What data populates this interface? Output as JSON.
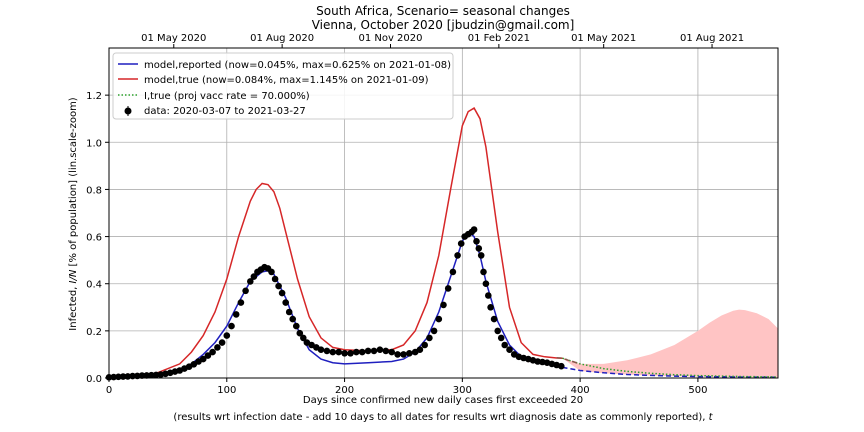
{
  "chart_data": {
    "type": "line",
    "title": [
      "South Africa, Scenario= seasonal changes",
      "Vienna, October 2020 [jbudzin@gmail.com]"
    ],
    "xlabel": "Days since confirmed new daily cases first exceeded 20",
    "xlabel_note_before": "(results wrt infection date - add 10 days to all dates for results wrt diagnosis date as commonly reported), ",
    "xlabel_note_var": "t",
    "ylabel_before": "Infected, ",
    "ylabel_var": "I/N",
    "ylabel_after": " [% of population] (lin.scale-zoom)",
    "xlim": [
      0,
      568
    ],
    "ylim": [
      0,
      1.4
    ],
    "x_ticks": [
      0,
      100,
      200,
      300,
      400,
      500
    ],
    "y_ticks": [
      0.0,
      0.2,
      0.4,
      0.6,
      0.8,
      1.0,
      1.2
    ],
    "top_axis_ticks": [
      {
        "x": 55,
        "label": "01 May 2020"
      },
      {
        "x": 147,
        "label": "01 Aug 2020"
      },
      {
        "x": 239,
        "label": "01 Nov 2020"
      },
      {
        "x": 331,
        "label": "01 Feb 2021"
      },
      {
        "x": 420,
        "label": "01 May 2021"
      },
      {
        "x": 512,
        "label": "01 Aug 2021"
      }
    ],
    "grid": true,
    "legend_position": "upper-left",
    "legend": [
      {
        "label": "model,reported (now=0.045%, max=0.625% on 2021-01-08)",
        "color": "#1f1fbf",
        "style": "solid"
      },
      {
        "label": "model,true (now=0.084%, max=1.145% on 2021-01-09)",
        "color": "#d62728",
        "style": "solid"
      },
      {
        "label": "I,true (proj vacc rate = 70.000%)",
        "color": "#2ca02c",
        "style": "dotted"
      },
      {
        "label": "data: 2020-03-07 to 2021-03-27",
        "color": "#000000",
        "style": "marker"
      }
    ],
    "series": [
      {
        "name": "model,reported",
        "color": "#1f1fbf",
        "x": [
          0,
          20,
          40,
          60,
          70,
          80,
          90,
          100,
          110,
          120,
          130,
          135,
          140,
          150,
          160,
          170,
          180,
          190,
          200,
          220,
          240,
          250,
          260,
          270,
          280,
          290,
          300,
          305,
          310,
          315,
          320,
          330,
          340,
          350,
          360,
          370,
          380,
          385
        ],
        "y": [
          0.0,
          0.005,
          0.01,
          0.03,
          0.06,
          0.1,
          0.15,
          0.22,
          0.32,
          0.41,
          0.45,
          0.455,
          0.44,
          0.34,
          0.21,
          0.12,
          0.08,
          0.065,
          0.06,
          0.065,
          0.07,
          0.08,
          0.11,
          0.17,
          0.28,
          0.43,
          0.58,
          0.62,
          0.6,
          0.52,
          0.41,
          0.24,
          0.14,
          0.09,
          0.07,
          0.06,
          0.05,
          0.045
        ]
      },
      {
        "name": "model,reported (projection)",
        "color": "#1f1fbf",
        "dashed": true,
        "x": [
          385,
          400,
          420,
          440,
          460,
          480,
          500,
          520,
          540,
          560,
          568
        ],
        "y": [
          0.045,
          0.032,
          0.022,
          0.015,
          0.011,
          0.008,
          0.006,
          0.005,
          0.004,
          0.003,
          0.003
        ]
      },
      {
        "name": "model,true",
        "color": "#d62728",
        "x": [
          0,
          20,
          40,
          60,
          70,
          80,
          90,
          100,
          110,
          120,
          125,
          130,
          135,
          140,
          145,
          150,
          160,
          170,
          180,
          190,
          200,
          220,
          240,
          250,
          260,
          270,
          280,
          290,
          300,
          305,
          310,
          315,
          320,
          330,
          340,
          350,
          360,
          370,
          380,
          385
        ],
        "y": [
          0.0,
          0.01,
          0.02,
          0.06,
          0.11,
          0.18,
          0.28,
          0.42,
          0.6,
          0.75,
          0.8,
          0.825,
          0.82,
          0.79,
          0.72,
          0.62,
          0.42,
          0.26,
          0.17,
          0.13,
          0.12,
          0.115,
          0.12,
          0.14,
          0.2,
          0.32,
          0.52,
          0.8,
          1.07,
          1.13,
          1.145,
          1.1,
          0.98,
          0.62,
          0.3,
          0.15,
          0.1,
          0.09,
          0.085,
          0.084
        ]
      },
      {
        "name": "I,true (projection)",
        "color": "#2ca02c",
        "dotted": true,
        "x": [
          385,
          400,
          420,
          440,
          460,
          480,
          500,
          520,
          540,
          560,
          568
        ],
        "y": [
          0.084,
          0.06,
          0.04,
          0.028,
          0.02,
          0.014,
          0.01,
          0.008,
          0.006,
          0.005,
          0.004
        ]
      },
      {
        "name": "model,true (projection)",
        "color": "#8c564b",
        "dashed": true,
        "x": [
          380,
          385,
          390,
          395,
          400
        ],
        "y": [
          0.086,
          0.084,
          0.075,
          0.068,
          0.06
        ]
      }
    ],
    "band": {
      "color": "#ffc4c4",
      "x": [
        385,
        400,
        420,
        440,
        460,
        480,
        500,
        510,
        520,
        530,
        535,
        540,
        550,
        560,
        568
      ],
      "upper": [
        0.084,
        0.06,
        0.06,
        0.075,
        0.1,
        0.14,
        0.2,
        0.235,
        0.265,
        0.285,
        0.29,
        0.288,
        0.275,
        0.25,
        0.21
      ],
      "lower": [
        0.084,
        0.03,
        0.02,
        0.015,
        0.01,
        0.008,
        0.006,
        0.005,
        0.005,
        0.004,
        0.004,
        0.004,
        0.003,
        0.003,
        0.003
      ]
    },
    "data_points": {
      "color": "#000000",
      "error_color": "#c00000",
      "x": [
        0,
        4,
        8,
        12,
        16,
        20,
        24,
        28,
        32,
        36,
        40,
        44,
        48,
        52,
        56,
        60,
        64,
        68,
        72,
        76,
        80,
        84,
        88,
        92,
        96,
        100,
        104,
        108,
        112,
        116,
        120,
        123,
        126,
        129,
        132,
        135,
        138,
        141,
        144,
        147,
        150,
        153,
        156,
        159,
        162,
        165,
        168,
        172,
        176,
        180,
        185,
        190,
        195,
        200,
        205,
        210,
        215,
        220,
        225,
        230,
        235,
        240,
        245,
        250,
        255,
        260,
        264,
        268,
        272,
        276,
        280,
        284,
        288,
        292,
        296,
        299,
        302,
        305,
        308,
        310,
        312,
        314,
        316,
        318,
        320,
        322,
        324,
        327,
        330,
        333,
        336,
        340,
        344,
        348,
        352,
        356,
        360,
        364,
        368,
        372,
        376,
        380,
        384
      ],
      "y": [
        0.003,
        0.004,
        0.005,
        0.006,
        0.007,
        0.008,
        0.009,
        0.01,
        0.011,
        0.012,
        0.013,
        0.015,
        0.018,
        0.022,
        0.027,
        0.032,
        0.04,
        0.048,
        0.058,
        0.07,
        0.08,
        0.095,
        0.11,
        0.13,
        0.15,
        0.18,
        0.22,
        0.27,
        0.32,
        0.37,
        0.41,
        0.43,
        0.45,
        0.46,
        0.47,
        0.465,
        0.45,
        0.42,
        0.39,
        0.36,
        0.32,
        0.28,
        0.25,
        0.22,
        0.19,
        0.17,
        0.15,
        0.14,
        0.13,
        0.12,
        0.115,
        0.11,
        0.11,
        0.105,
        0.105,
        0.11,
        0.11,
        0.115,
        0.115,
        0.12,
        0.115,
        0.11,
        0.1,
        0.1,
        0.105,
        0.11,
        0.12,
        0.14,
        0.17,
        0.2,
        0.25,
        0.31,
        0.38,
        0.45,
        0.52,
        0.57,
        0.6,
        0.61,
        0.62,
        0.63,
        0.58,
        0.55,
        0.52,
        0.45,
        0.4,
        0.35,
        0.3,
        0.25,
        0.2,
        0.17,
        0.14,
        0.12,
        0.1,
        0.09,
        0.085,
        0.08,
        0.075,
        0.07,
        0.068,
        0.065,
        0.06,
        0.055,
        0.05
      ]
    }
  }
}
